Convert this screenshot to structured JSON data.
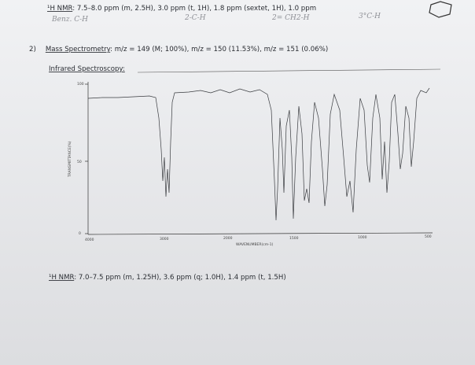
{
  "top_nmr": {
    "label": "¹H NMR",
    "text": ": 7.5–8.0 ppm (m, 2.5H), 3.0 ppm (t, 1H), 1.8 ppm (sextet, 1H), 1.0 ppm"
  },
  "handwritten_notes": [
    "Benz. C-H",
    "2-C-H",
    "2= CH2-H",
    "3°C-H"
  ],
  "mass_spec": {
    "number": "2)",
    "label": "Mass Spectrometry",
    "text": ": m/z = 149 (M; 100%), m/z = 150 (11.53%), m/z = 151 (0.06%)"
  },
  "ir": {
    "label": "Infrared Spectroscopy:",
    "y_axis_title": "TRANSMITTANCE(%)",
    "y_tick_labels": [
      "100",
      "50",
      "0"
    ],
    "x_tick_labels": [
      "4000",
      "3000",
      "2000",
      "1500",
      "1000",
      "500"
    ],
    "x_axis_title": "WAVENUMBER(cm-1)"
  },
  "bottom_nmr": {
    "label": "¹H NMR",
    "text": ": 7.0–7.5 ppm (m, 1.25H), 3.6 ppm (q; 1.0H), 1.4 ppm (t, 1.5H)"
  }
}
